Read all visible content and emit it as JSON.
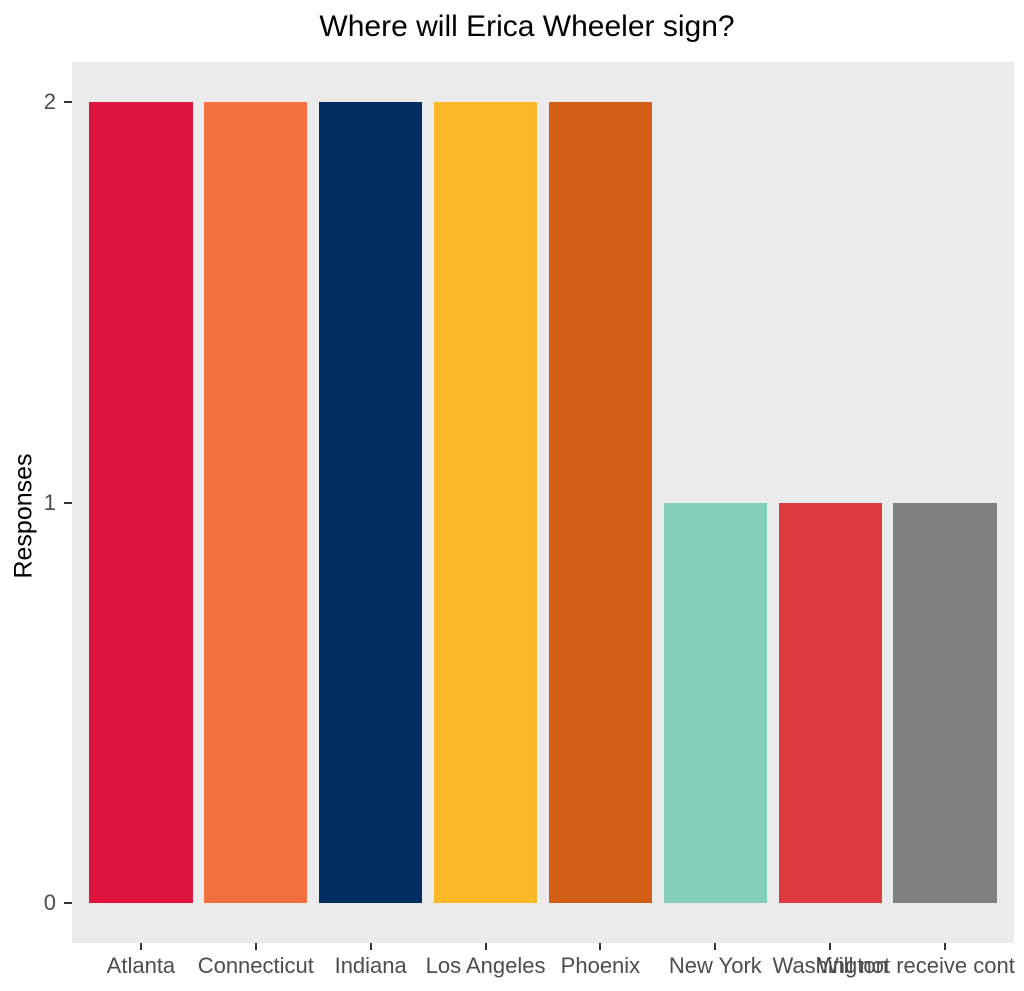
{
  "chart_data": {
    "type": "bar",
    "title": "Where will Erica Wheeler sign?",
    "xlabel": "",
    "ylabel": "Responses",
    "categories": [
      "Atlanta",
      "Connecticut",
      "Indiana",
      "Los Angeles",
      "Phoenix",
      "New York",
      "Washington",
      "Will not receive cont"
    ],
    "values": [
      2,
      2,
      2,
      2,
      2,
      1,
      1,
      1
    ],
    "bar_colors": [
      "#E0153F",
      "#F3713E",
      "#002E62",
      "#FCB826",
      "#D15E14",
      "#85CDBB",
      "#DD3A3F",
      "#808080"
    ],
    "yticks": [
      0,
      1,
      2
    ],
    "ylim": [
      -0.1,
      2.1
    ],
    "grid": "off",
    "legend": "none",
    "panel_bg": "#EBEBEB",
    "axis_text_color": "#4D4D4D",
    "tick_color": "#333333",
    "title_color": "#000000"
  }
}
